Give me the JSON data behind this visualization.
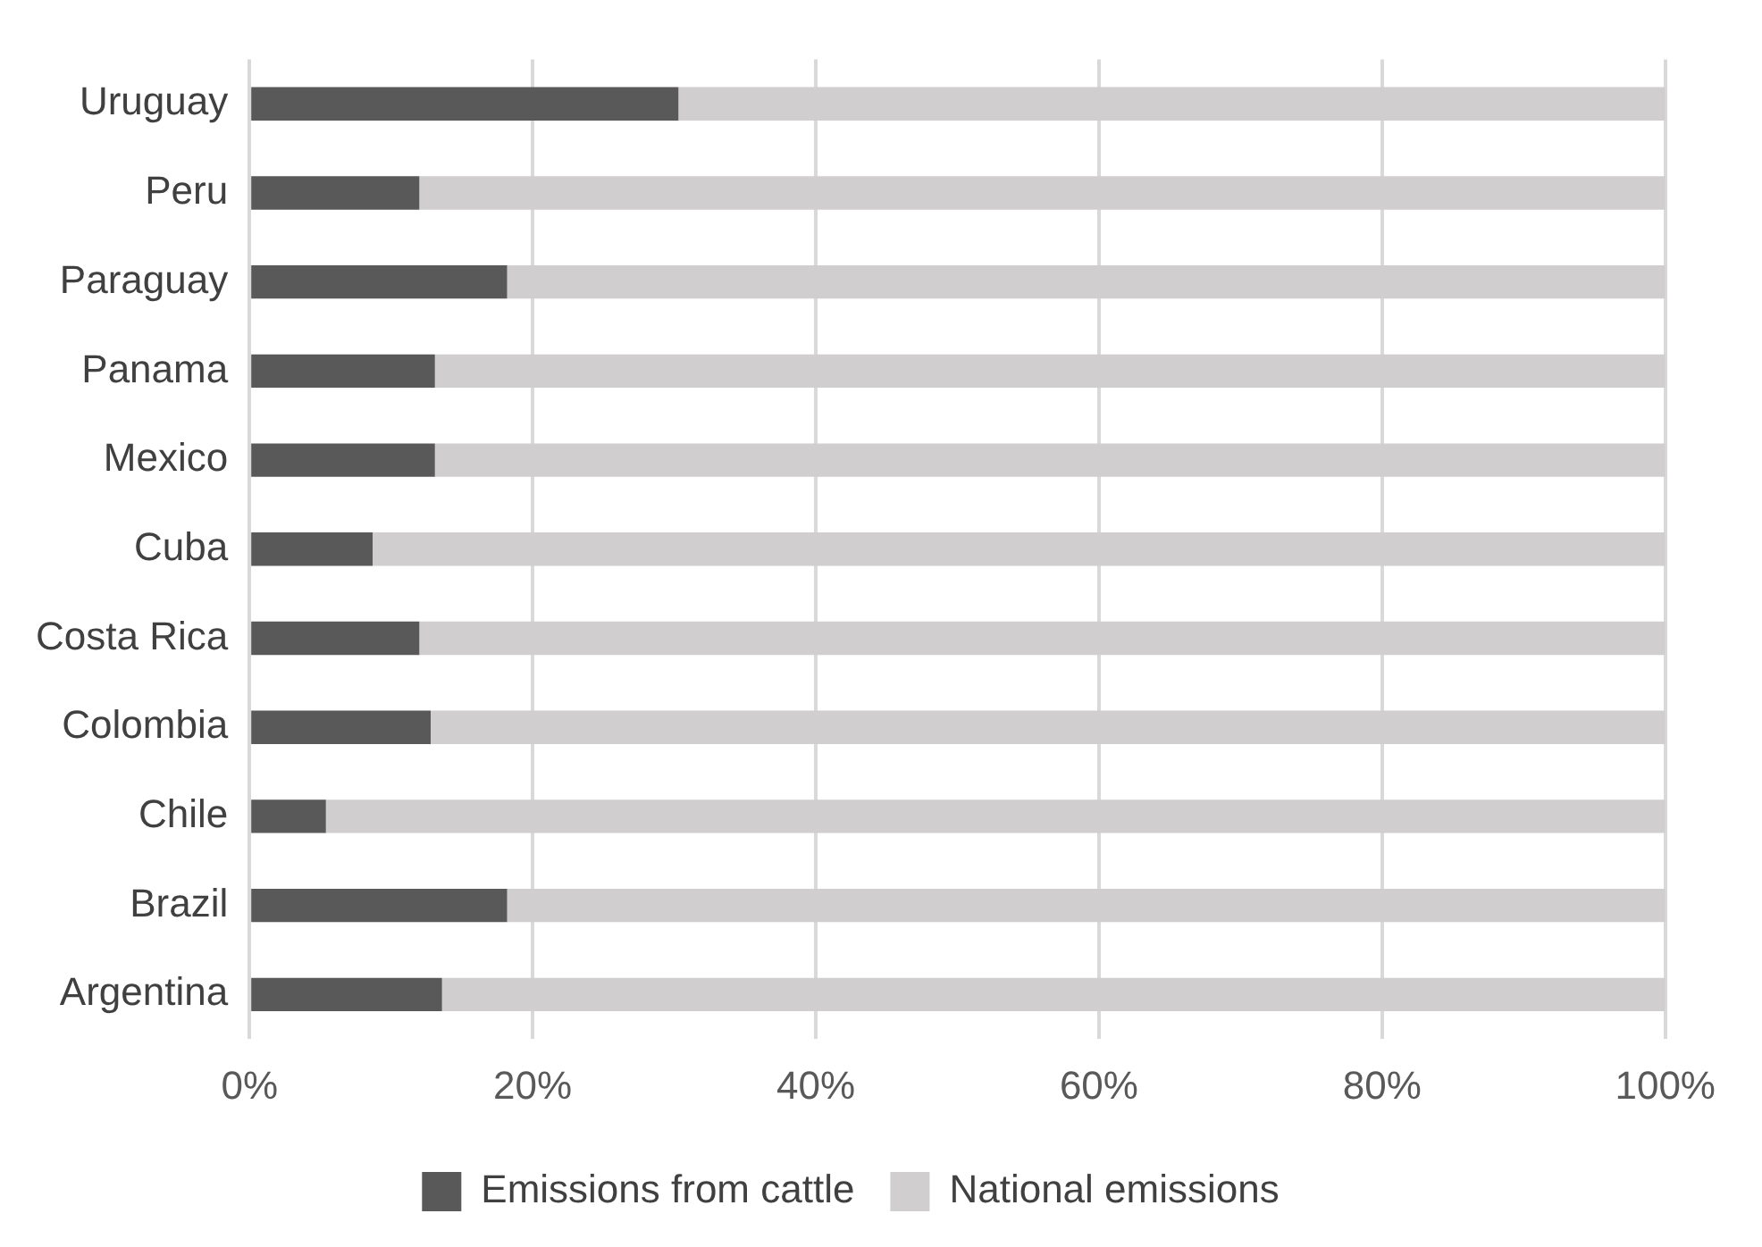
{
  "chart_data": {
    "type": "bar",
    "orientation": "horizontal",
    "stacked": true,
    "categories": [
      "Uruguay",
      "Peru",
      "Paraguay",
      "Panama",
      "Mexico",
      "Cuba",
      "Costa Rica",
      "Colombia",
      "Chile",
      "Brazil",
      "Argentina"
    ],
    "series": [
      {
        "name": "Emissions from cattle",
        "color": "#595959",
        "values": [
          30.3,
          12.0,
          18.2,
          13.1,
          13.1,
          8.7,
          12.0,
          12.8,
          5.4,
          18.2,
          13.6
        ]
      },
      {
        "name": "National emissions",
        "color": "#d0cece",
        "values": [
          69.7,
          88.0,
          81.8,
          86.9,
          86.9,
          91.3,
          88.0,
          87.2,
          94.6,
          81.8,
          86.4
        ]
      }
    ],
    "xlim": [
      0,
      100
    ],
    "xticks": [
      {
        "value": 0,
        "label": "0%"
      },
      {
        "value": 20,
        "label": "20%"
      },
      {
        "value": 40,
        "label": "40%"
      },
      {
        "value": 60,
        "label": "60%"
      },
      {
        "value": 80,
        "label": "80%"
      },
      {
        "value": 100,
        "label": "100%"
      }
    ],
    "grid": "x",
    "legend": "bottom"
  }
}
